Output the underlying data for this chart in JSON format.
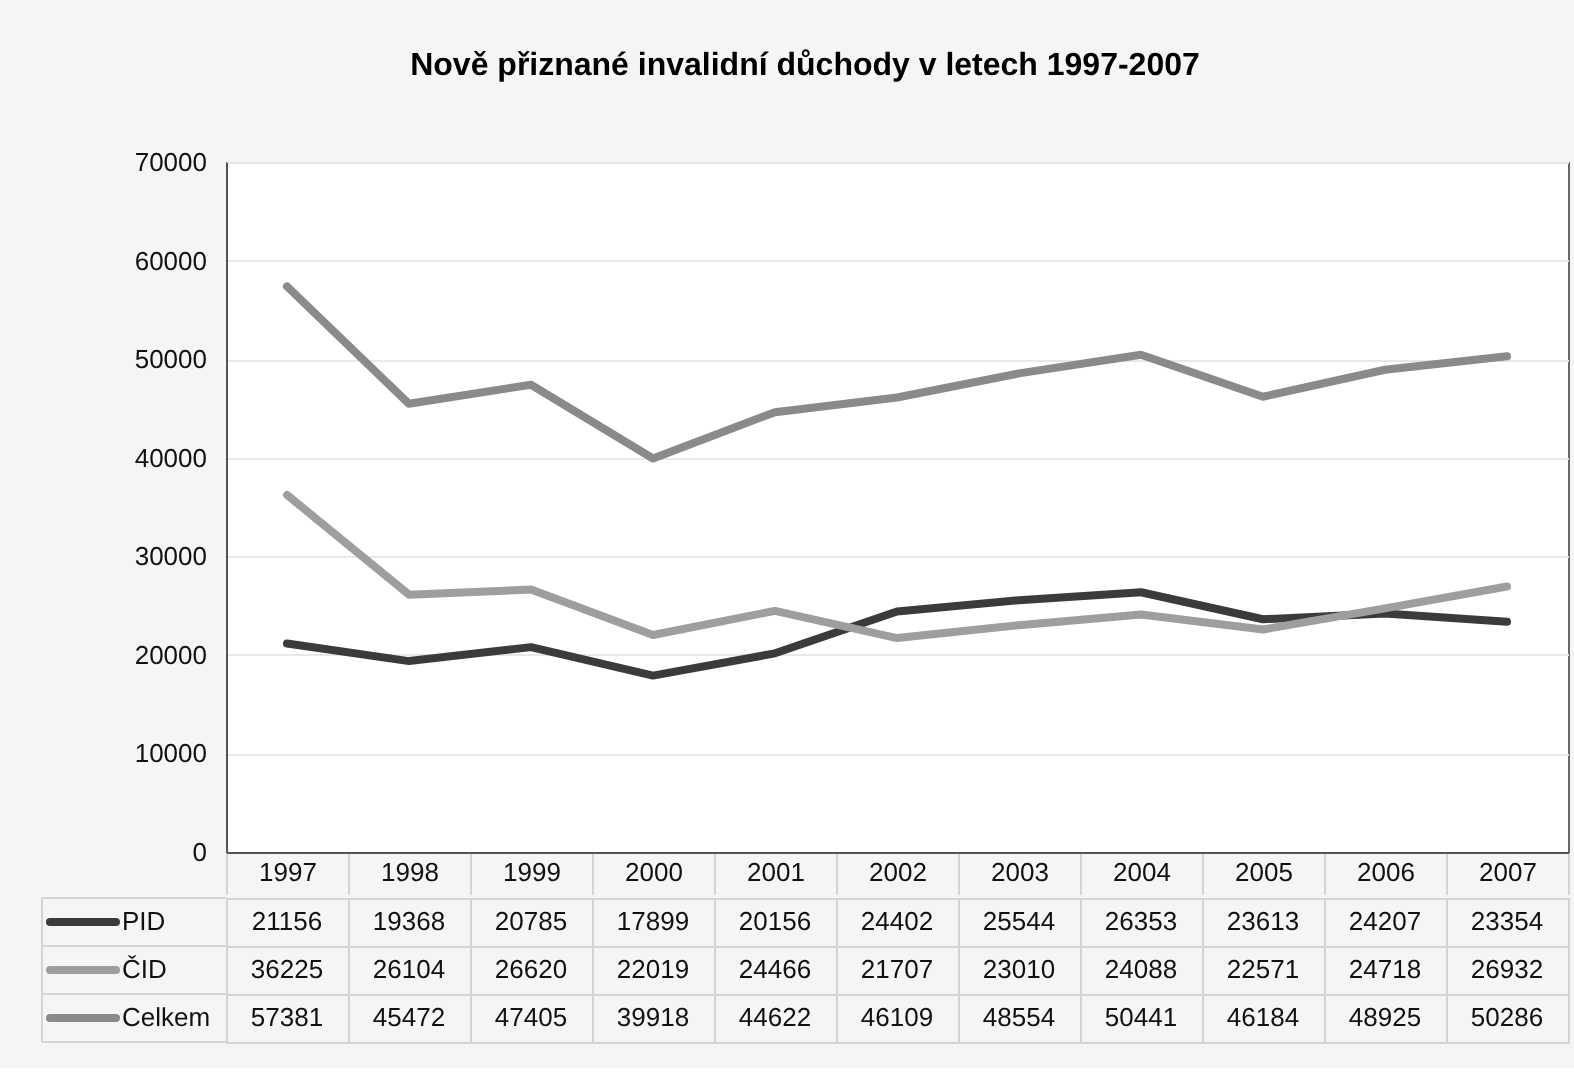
{
  "chart_data": {
    "type": "line",
    "title": "Nově přiznané invalidní důchody v letech 1997-2007",
    "categories": [
      "1997",
      "1998",
      "1999",
      "2000",
      "2001",
      "2002",
      "2003",
      "2004",
      "2005",
      "2006",
      "2007"
    ],
    "series": [
      {
        "name": "PID",
        "color": "#3b3b3b",
        "values": [
          21156,
          19368,
          20785,
          17899,
          20156,
          24402,
          25544,
          26353,
          23613,
          24207,
          23354
        ]
      },
      {
        "name": "ČID",
        "color": "#9e9e9e",
        "values": [
          36225,
          26104,
          26620,
          22019,
          24466,
          21707,
          23010,
          24088,
          22571,
          24718,
          26932
        ]
      },
      {
        "name": "Celkem",
        "color": "#8a8a8a",
        "values": [
          57381,
          45472,
          47405,
          39918,
          44622,
          46109,
          48554,
          50441,
          46184,
          48925,
          50286
        ]
      }
    ],
    "ylim": [
      0,
      70000
    ],
    "yticks": [
      0,
      10000,
      20000,
      30000,
      40000,
      50000,
      60000,
      70000
    ],
    "grid": "y",
    "legend": "bottom left",
    "data_labels": true
  }
}
